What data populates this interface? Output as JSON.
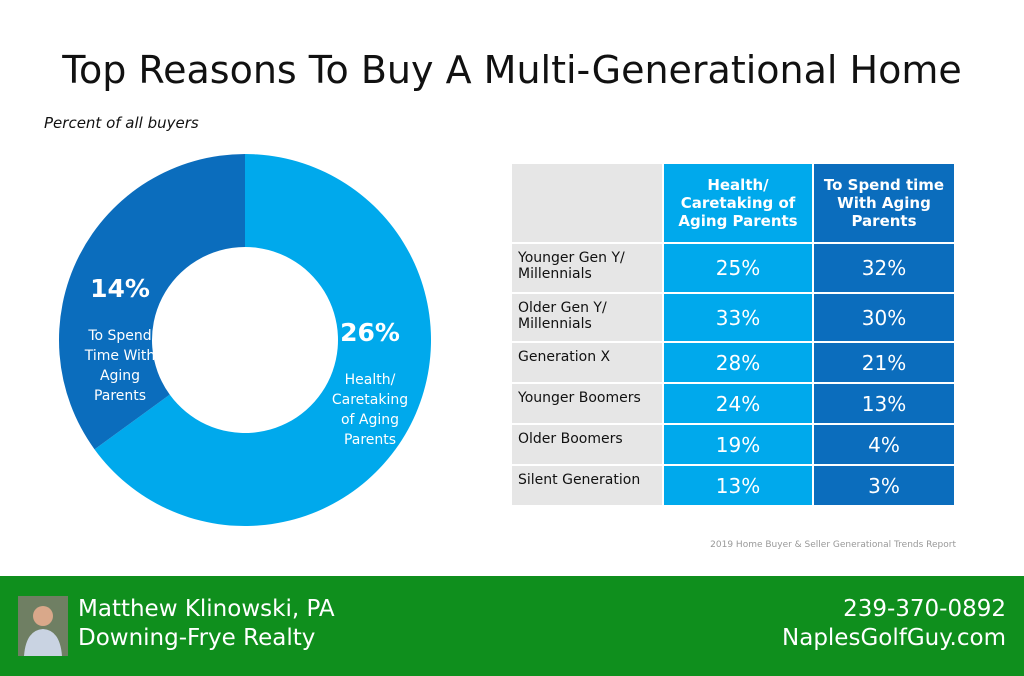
{
  "chart_data": {
    "type": "donut",
    "title": "Top Reasons To Buy A Multi-Generational Home",
    "subtitle": "Percent of all buyers",
    "categories": [
      "Health/\nCaretaking\nof Aging\nParents",
      "To Spend\nTime With\nAging\nParents"
    ],
    "values": [
      26,
      14
    ],
    "value_labels": [
      "26%",
      "14%"
    ],
    "colors": [
      "#00a9ec",
      "#0b6dbd"
    ]
  },
  "table": {
    "columns": [
      "",
      "Health/\nCaretaking of\nAging Parents",
      "To Spend time\nWith Aging\nParents"
    ],
    "rows": [
      [
        "Younger Gen Y/\nMillennials",
        "25%",
        "32%"
      ],
      [
        "Older Gen Y/\nMillennials",
        "33%",
        "30%"
      ],
      [
        "Generation X",
        "28%",
        "21%"
      ],
      [
        "Younger Boomers",
        "24%",
        "13%"
      ],
      [
        "Older Boomers",
        "19%",
        "4%"
      ],
      [
        "Silent Generation",
        "13%",
        "3%"
      ]
    ]
  },
  "source": "2019 Home Buyer & Seller Generational Trends Report",
  "footer": {
    "name": "Matthew Klinowski, PA",
    "company": "Downing-Frye Realty",
    "phone": "239-370-0892",
    "website": "NaplesGolfGuy.com"
  }
}
